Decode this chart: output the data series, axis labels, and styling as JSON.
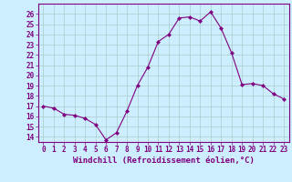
{
  "hours": [
    0,
    1,
    2,
    3,
    4,
    5,
    6,
    7,
    8,
    9,
    10,
    11,
    12,
    13,
    14,
    15,
    16,
    17,
    18,
    19,
    20,
    21,
    22,
    23
  ],
  "windchill": [
    17.0,
    16.8,
    16.2,
    16.1,
    15.8,
    15.2,
    13.7,
    14.4,
    16.5,
    19.0,
    20.8,
    23.3,
    24.0,
    25.6,
    25.7,
    25.3,
    26.2,
    24.6,
    22.2,
    19.1,
    19.2,
    19.0,
    18.2,
    17.7
  ],
  "line_color": "#800080",
  "marker": "D",
  "marker_size": 2,
  "bg_color": "#cceeff",
  "grid_color": "#aacccc",
  "xlabel": "Windchill (Refroidissement éolien,°C)",
  "ylim": [
    13.5,
    27
  ],
  "yticks": [
    14,
    15,
    16,
    17,
    18,
    19,
    20,
    21,
    22,
    23,
    24,
    25,
    26
  ],
  "xticks": [
    0,
    1,
    2,
    3,
    4,
    5,
    6,
    7,
    8,
    9,
    10,
    11,
    12,
    13,
    14,
    15,
    16,
    17,
    18,
    19,
    20,
    21,
    22,
    23
  ],
  "tick_label_size": 5.5,
  "xlabel_size": 6.5,
  "axis_color": "#800080"
}
